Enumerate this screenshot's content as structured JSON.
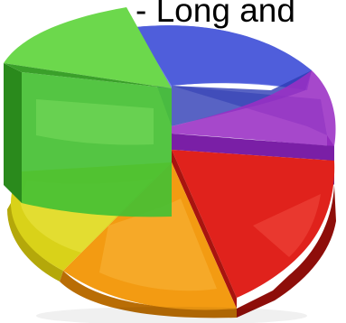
{
  "caption": {
    "text": "- Long and"
  },
  "chart_data": {
    "type": "pie",
    "title": "",
    "style": "3d-exploded",
    "slices": [
      {
        "color": "#3f4fd0",
        "exploded": false
      },
      {
        "color": "#9a2fc4",
        "exploded": false
      },
      {
        "color": "#e0221c",
        "exploded": false
      },
      {
        "color": "#f39b12",
        "exploded": false
      },
      {
        "color": "#d9d219",
        "exploded": false
      },
      {
        "color": "#3fbe2a",
        "exploded": true
      }
    ]
  }
}
